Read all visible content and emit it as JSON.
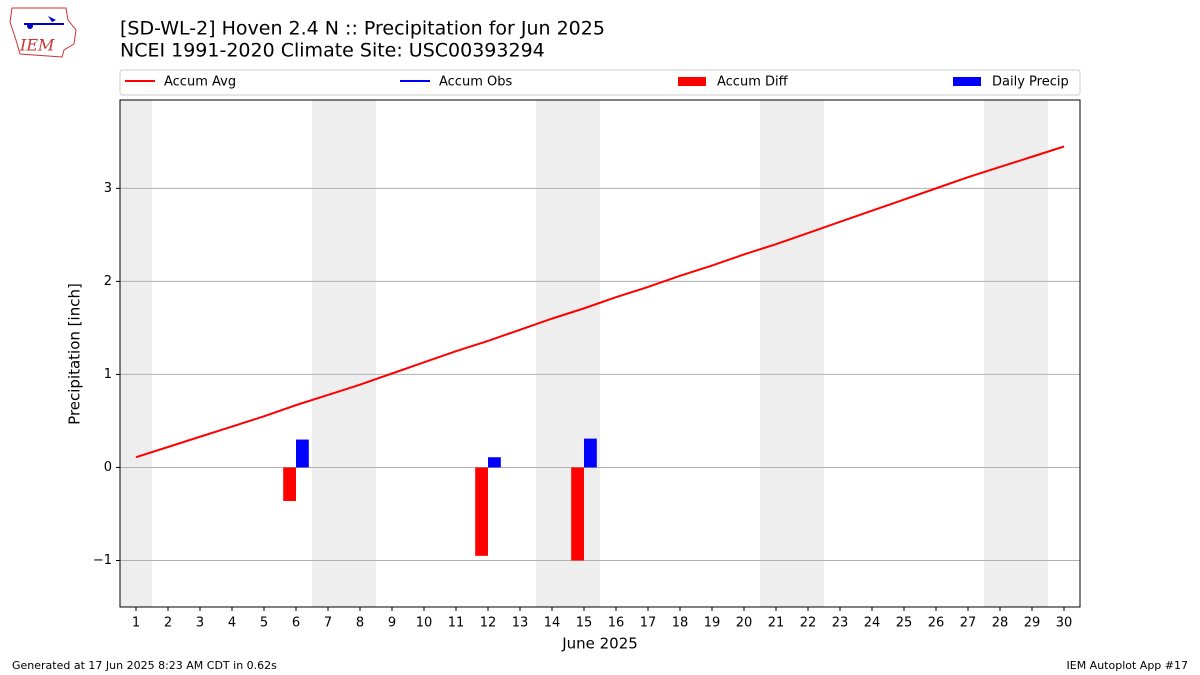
{
  "chart_data": {
    "type": "bar_line",
    "title": "[SD-WL-2] Hoven 2.4 N :: Precipitation for Jun 2025",
    "subtitle": "NCEI 1991-2020 Climate Site: USC00393294",
    "xlabel": "June 2025",
    "ylabel": "Precipitation [inch]",
    "x": [
      1,
      2,
      3,
      4,
      5,
      6,
      7,
      8,
      9,
      10,
      11,
      12,
      13,
      14,
      15,
      16,
      17,
      18,
      19,
      20,
      21,
      22,
      23,
      24,
      25,
      26,
      27,
      28,
      29,
      30
    ],
    "xlim": [
      0.5,
      30.5
    ],
    "xticks": [
      1,
      2,
      3,
      4,
      5,
      6,
      7,
      8,
      9,
      10,
      11,
      12,
      13,
      14,
      15,
      16,
      17,
      18,
      19,
      20,
      21,
      22,
      23,
      24,
      25,
      26,
      27,
      28,
      29,
      30
    ],
    "ylim": [
      -1.5,
      3.95
    ],
    "yticks": [
      {
        "value": -1,
        "label": "−1"
      },
      0,
      1,
      2,
      3
    ],
    "grid": true,
    "weekend_days": [
      1,
      7,
      8,
      14,
      15,
      21,
      22,
      28,
      29
    ],
    "series": [
      {
        "name": "Accum Avg",
        "kind": "line",
        "color": "#ff0000",
        "values": [
          0.11,
          0.22,
          0.33,
          0.44,
          0.55,
          0.67,
          0.78,
          0.89,
          1.01,
          1.13,
          1.25,
          1.36,
          1.48,
          1.6,
          1.71,
          1.83,
          1.94,
          2.06,
          2.17,
          2.29,
          2.4,
          2.52,
          2.64,
          2.76,
          2.88,
          3.0,
          3.12,
          3.23,
          3.34,
          3.45
        ]
      },
      {
        "name": "Accum Obs",
        "kind": "line",
        "color": "#0000ff",
        "values": [
          null,
          null,
          null,
          null,
          null,
          null,
          null,
          null,
          null,
          null,
          null,
          null,
          null,
          null,
          null,
          null,
          null,
          null,
          null,
          null,
          null,
          null,
          null,
          null,
          null,
          null,
          null,
          null,
          null,
          null
        ]
      },
      {
        "name": "Accum Diff",
        "kind": "bar",
        "color": "#ff0000",
        "values": [
          null,
          null,
          null,
          null,
          null,
          -0.36,
          null,
          null,
          null,
          null,
          null,
          -0.95,
          null,
          null,
          -1.0,
          null,
          null,
          null,
          null,
          null,
          null,
          null,
          null,
          null,
          null,
          null,
          null,
          null,
          null,
          null
        ]
      },
      {
        "name": "Daily Precip",
        "kind": "bar",
        "color": "#0000ff",
        "values": [
          null,
          null,
          null,
          null,
          null,
          0.3,
          null,
          null,
          null,
          null,
          null,
          0.11,
          null,
          null,
          0.31,
          null,
          null,
          null,
          null,
          null,
          null,
          null,
          null,
          null,
          null,
          null,
          null,
          null,
          null,
          null
        ]
      }
    ],
    "footer_left": "Generated at 17 Jun 2025 8:23 AM CDT in 0.62s",
    "footer_right": "IEM Autoplot App #17",
    "logo_text": "IEM"
  }
}
